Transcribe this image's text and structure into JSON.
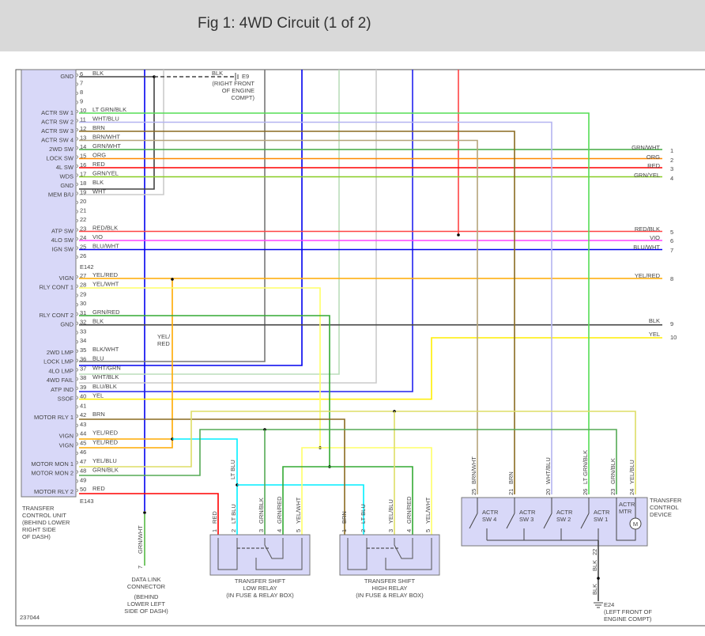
{
  "header": {
    "title": "Fig 1: 4WD Circuit (1 of 2)"
  },
  "control_unit": {
    "label": [
      "TRANSFER",
      "CONTROL UNIT",
      "(BEHIND LOWER",
      "RIGHT SIDE",
      "OF DASH)"
    ],
    "connectors": [
      "E142",
      "E143"
    ]
  },
  "pins": [
    {
      "n": "6",
      "func": "GND",
      "wire": "BLK",
      "color": "#444444"
    },
    {
      "n": "7"
    },
    {
      "n": "8"
    },
    {
      "n": "9"
    },
    {
      "n": "10",
      "func": "ACTR SW 1",
      "wire": "LT GRN/BLK",
      "color": "#55dd55"
    },
    {
      "n": "11",
      "func": "ACTR SW 2",
      "wire": "WHT/BLU",
      "color": "#b4b4f0"
    },
    {
      "n": "12",
      "func": "ACTR SW 3",
      "wire": "BRN",
      "color": "#8a6a20"
    },
    {
      "n": "13",
      "func": "ACTR SW 4",
      "wire": "BRN/WHT",
      "color": "#b5a47a"
    },
    {
      "n": "14",
      "func": "2WD SW",
      "wire": "GRN/WHT",
      "color": "#44aa44"
    },
    {
      "n": "15",
      "func": "LOCK SW",
      "wire": "ORG",
      "color": "#ff8800"
    },
    {
      "n": "16",
      "func": "4L SW",
      "wire": "RED",
      "color": "#ff0000"
    },
    {
      "n": "17",
      "func": "WDS",
      "wire": "GRN/YEL",
      "color": "#88cc22"
    },
    {
      "n": "18",
      "func": "GND",
      "wire": "BLK",
      "color": "#444444"
    },
    {
      "n": "19",
      "func": "MEM B/U",
      "wire": "WHT",
      "color": "#cccccc"
    },
    {
      "n": "20"
    },
    {
      "n": "21"
    },
    {
      "n": "22"
    },
    {
      "n": "23",
      "func": "ATP SW",
      "wire": "RED/BLK",
      "color": "#ff4444"
    },
    {
      "n": "24",
      "func": "4LO SW",
      "wire": "VIO",
      "color": "#ff44ff"
    },
    {
      "n": "25",
      "func": "IGN SW",
      "wire": "BLU/WHT",
      "color": "#0000ee"
    },
    {
      "n": "26"
    },
    {
      "n": "27",
      "func": "VIGN",
      "wire": "YEL/RED",
      "color": "#ffaa00"
    },
    {
      "n": "28",
      "func": "RLY CONT 1",
      "wire": "YEL/WHT",
      "color": "#ffff66"
    },
    {
      "n": "29"
    },
    {
      "n": "30"
    },
    {
      "n": "31",
      "func": "RLY CONT 2",
      "wire": "GRN/RED",
      "color": "#33aa33"
    },
    {
      "n": "32",
      "func": "GND",
      "wire": "BLK",
      "color": "#444444"
    },
    {
      "n": "33"
    },
    {
      "n": "34"
    },
    {
      "n": "35",
      "func": "2WD LMP",
      "wire": "BLK/WHT",
      "color": "#777777"
    },
    {
      "n": "36",
      "func": "LOCK LMP",
      "wire": "BLU",
      "color": "#0000ee"
    },
    {
      "n": "37",
      "func": "4LO LMP",
      "wire": "WHT/GRN",
      "color": "#bbddbb"
    },
    {
      "n": "38",
      "func": "4WD FAIL",
      "wire": "WHT/BLK",
      "color": "#cccccc"
    },
    {
      "n": "39",
      "func": "ATP IND",
      "wire": "BLU/BLK",
      "color": "#2222ee"
    },
    {
      "n": "40",
      "func": "SSOF",
      "wire": "YEL",
      "color": "#ffee00"
    },
    {
      "n": "41"
    },
    {
      "n": "42",
      "func": "MOTOR RLY 1",
      "wire": "BRN",
      "color": "#8a6a20"
    },
    {
      "n": "43"
    },
    {
      "n": "44",
      "func": "VIGN",
      "wire": "YEL/RED",
      "color": "#ffaa00"
    },
    {
      "n": "45",
      "func": "VIGN",
      "wire": "YEL/RED",
      "color": "#ffaa00"
    },
    {
      "n": "46"
    },
    {
      "n": "47",
      "func": "MOTOR MON 1",
      "wire": "YEL/BLU",
      "color": "#dddd66"
    },
    {
      "n": "48",
      "func": "MOTOR MON 2",
      "wire": "GRN/BLK",
      "color": "#55aa55"
    },
    {
      "n": "49"
    },
    {
      "n": "50",
      "func": "MOTOR RLY 2",
      "wire": "RED",
      "color": "#ff0000"
    }
  ],
  "right_terminals": [
    {
      "n": "1",
      "wire": "GRN/WHT"
    },
    {
      "n": "2",
      "wire": "ORG"
    },
    {
      "n": "3",
      "wire": "RED"
    },
    {
      "n": "4",
      "wire": "GRN/YEL"
    },
    {
      "n": "5",
      "wire": "RED/BLK"
    },
    {
      "n": "6",
      "wire": "VIO"
    },
    {
      "n": "7",
      "wire": "BLU/WHT"
    },
    {
      "n": "8",
      "wire": "YEL/RED"
    },
    {
      "n": "9",
      "wire": "BLK"
    },
    {
      "n": "10",
      "wire": "YEL"
    }
  ],
  "ground_e9": {
    "wire": "BLK",
    "id": "E9",
    "label": [
      "(RIGHT FRONT",
      "OF ENGINE",
      "COMPT)"
    ]
  },
  "ground_e24": {
    "wire": "BLK",
    "wire2": "BLK",
    "pin": "22",
    "id": "E24",
    "label": [
      "(LEFT FRONT OF",
      "ENGINE COMPT)"
    ]
  },
  "yel_red_label": [
    "YEL/",
    "RED"
  ],
  "dlc": {
    "wire": "GRN/WHT",
    "pin": "7",
    "label": [
      "DATA LINK",
      "CONNECTOR",
      "(BEHIND",
      "LOWER LEFT",
      "SIDE OF DASH)"
    ]
  },
  "low_relay": {
    "label": [
      "TRANSFER SHIFT",
      "LOW RELAY",
      "(IN FUSE & RELAY BOX)"
    ],
    "pins": [
      {
        "n": "1",
        "wire": "RED"
      },
      {
        "n": "2",
        "wire": "LT BLU"
      },
      {
        "n": "3",
        "wire": "GRN/BLK"
      },
      {
        "n": "4",
        "wire": "GRN/RED"
      },
      {
        "n": "5",
        "wire": "YEL/WHT"
      }
    ]
  },
  "high_relay": {
    "label": [
      "TRANSFER SHIFT",
      "HIGH RELAY",
      "(IN FUSE & RELAY BOX)"
    ],
    "pins": [
      {
        "n": "1",
        "wire": "BRN"
      },
      {
        "n": "2",
        "wire": "LT BLU"
      },
      {
        "n": "3",
        "wire": "YEL/BLU"
      },
      {
        "n": "4",
        "wire": "GRN/RED"
      },
      {
        "n": "5",
        "wire": "YEL/WHT"
      }
    ]
  },
  "lt_blu_label": "LT BLU",
  "device": {
    "label": [
      "TRANSFER",
      "CONTROL",
      "DEVICE"
    ],
    "pins": [
      {
        "n": "25",
        "wire": "BRN/WHT"
      },
      {
        "n": "21",
        "wire": "BRN"
      },
      {
        "n": "20",
        "wire": "WHT/BLU"
      },
      {
        "n": "26",
        "wire": "LT GRN/BLK"
      },
      {
        "n": "23",
        "wire": "GRN/BLK"
      },
      {
        "n": "24",
        "wire": "YEL/BLU"
      }
    ],
    "switches": [
      [
        "ACTR",
        "SW 4"
      ],
      [
        "ACTR",
        "SW 3"
      ],
      [
        "ACTR",
        "SW 2"
      ],
      [
        "ACTR",
        "SW 1"
      ]
    ],
    "motor": [
      "ACTR",
      "MTR"
    ],
    "motor_symbol": "M"
  },
  "figure_id": "237044",
  "colors": {
    "lt_blu": "#00eeff",
    "box_fill": "#d8d8f8",
    "box_stroke": "#777777",
    "header_bg": "#d9d9d9"
  }
}
